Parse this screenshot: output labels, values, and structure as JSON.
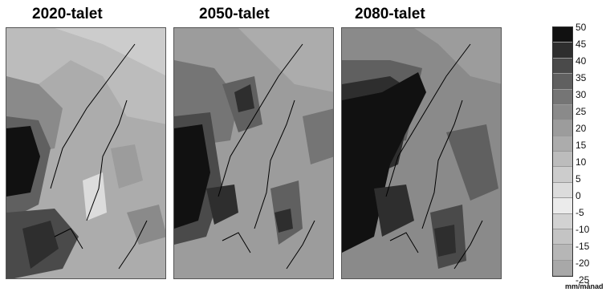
{
  "panels": [
    {
      "title": "2020-talet"
    },
    {
      "title": "2050-talet"
    },
    {
      "title": "2080-talet"
    }
  ],
  "legend": {
    "values": [
      "50",
      "45",
      "40",
      "35",
      "30",
      "25",
      "20",
      "15",
      "10",
      "5",
      "0",
      "-5",
      "-10",
      "-15",
      "-20",
      "-25"
    ],
    "colors": [
      "#111111",
      "#2e2e2e",
      "#4a4a4a",
      "#606060",
      "#757575",
      "#8a8a8a",
      "#9c9c9c",
      "#acacac",
      "#bcbcbc",
      "#cccccc",
      "#dcdcdc",
      "#ebebeb",
      "#d2d2d2",
      "#c4c4c4",
      "#b6b6b6",
      "#a8a8a8"
    ],
    "unit": "mm/månad"
  }
}
